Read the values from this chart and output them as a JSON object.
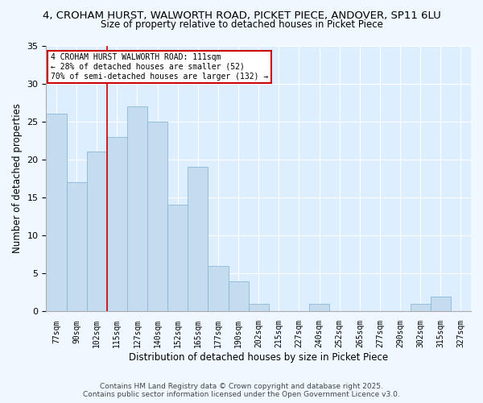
{
  "title": "4, CROHAM HURST, WALWORTH ROAD, PICKET PIECE, ANDOVER, SP11 6LU",
  "subtitle": "Size of property relative to detached houses in Picket Piece",
  "xlabel": "Distribution of detached houses by size in Picket Piece",
  "ylabel": "Number of detached properties",
  "background_color": "#ddeeff",
  "bar_color": "#c5dcef",
  "bar_edge_color": "#8ab8d8",
  "fig_background": "#f0f8ff",
  "categories": [
    "77sqm",
    "90sqm",
    "102sqm",
    "115sqm",
    "127sqm",
    "140sqm",
    "152sqm",
    "165sqm",
    "177sqm",
    "190sqm",
    "202sqm",
    "215sqm",
    "227sqm",
    "240sqm",
    "252sqm",
    "265sqm",
    "277sqm",
    "290sqm",
    "302sqm",
    "315sqm",
    "327sqm"
  ],
  "values": [
    26,
    17,
    21,
    23,
    27,
    25,
    14,
    19,
    6,
    4,
    1,
    0,
    0,
    1,
    0,
    0,
    0,
    0,
    1,
    2,
    0
  ],
  "ylim": [
    0,
    35
  ],
  "yticks": [
    0,
    5,
    10,
    15,
    20,
    25,
    30,
    35
  ],
  "vline_x": 2.5,
  "vline_color": "#cc0000",
  "annotation_line1": "4 CROHAM HURST WALWORTH ROAD: 111sqm",
  "annotation_line2": "← 28% of detached houses are smaller (52)",
  "annotation_line3": "70% of semi-detached houses are larger (132) →",
  "footer1": "Contains HM Land Registry data © Crown copyright and database right 2025.",
  "footer2": "Contains public sector information licensed under the Open Government Licence v3.0.",
  "title_fontsize": 9.5,
  "subtitle_fontsize": 8.5,
  "ann_fontsize": 7,
  "xlabel_fontsize": 8.5,
  "ylabel_fontsize": 8.5,
  "footer_fontsize": 6.5
}
